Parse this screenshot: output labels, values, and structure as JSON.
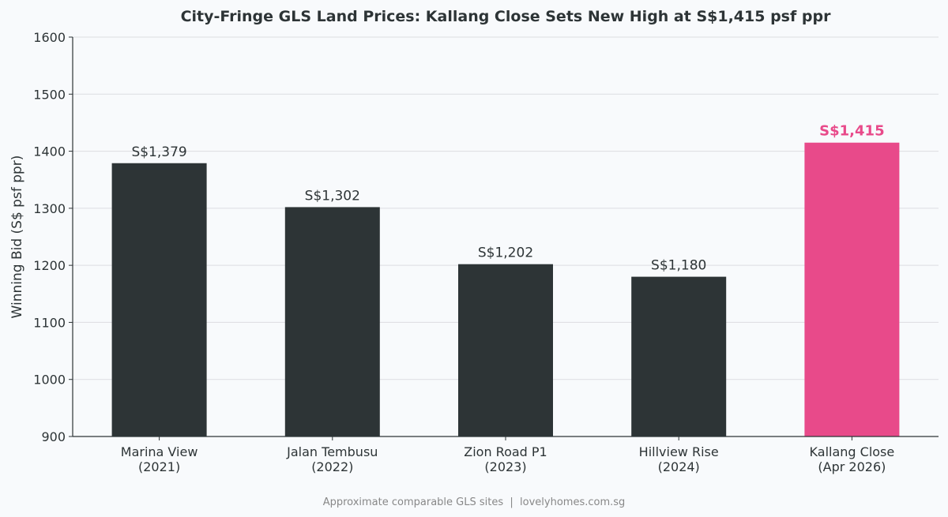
{
  "chart_data": {
    "type": "bar",
    "title": "City-Fringe GLS Land Prices: Kallang Close Sets New High at S$1,415 psf ppr",
    "xlabel": "",
    "ylabel": "Winning Bid (S$ psf ppr)",
    "ylim": [
      900,
      1600
    ],
    "yticks": [
      900,
      1000,
      1100,
      1200,
      1300,
      1400,
      1500,
      1600
    ],
    "grid": "horizontal",
    "categories": [
      [
        "Marina View",
        "(2021)"
      ],
      [
        "Jalan Tembusu",
        "(2022)"
      ],
      [
        "Zion Road P1",
        "(2023)"
      ],
      [
        "Hillview Rise",
        "(2024)"
      ],
      [
        "Kallang Close",
        "(Apr 2026)"
      ]
    ],
    "values": [
      1379,
      1302,
      1202,
      1180,
      1415
    ],
    "data_labels": [
      "S$1,379",
      "S$1,302",
      "S$1,202",
      "S$1,180",
      "S$1,415"
    ],
    "highlight_index": 4,
    "colors": {
      "bar": "#2d3436",
      "highlight": "#e84a8a",
      "grid": "#dcdde1",
      "text": "#2d3436"
    }
  },
  "footer": "Approximate comparable GLS sites  |  lovelyhomes.com.sg"
}
